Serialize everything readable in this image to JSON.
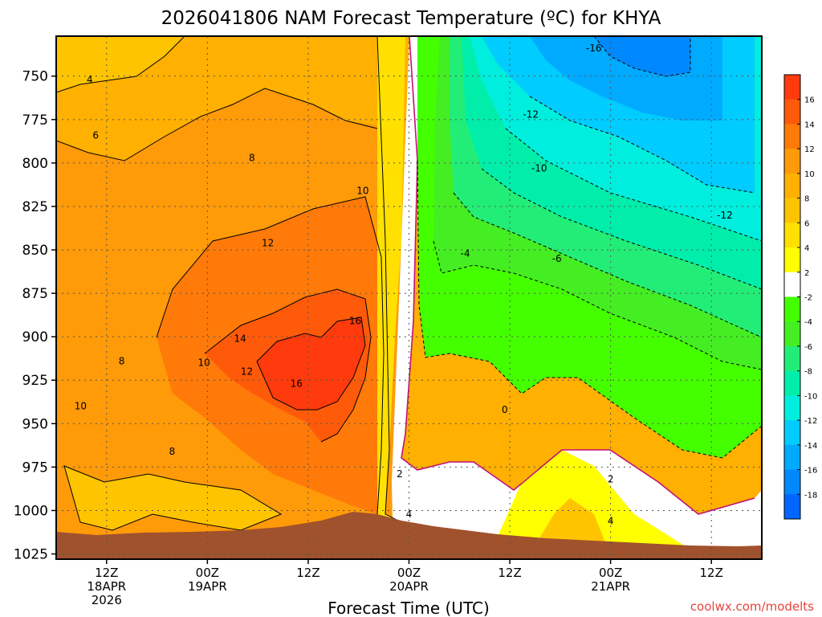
{
  "chart_data": {
    "type": "heatmap",
    "title": "2026041806 NAM Forecast Temperature (ºC) for KHYA",
    "xlabel": "Forecast Time (UTC)",
    "ylabel": "",
    "credit": "coolwx.com/modelts",
    "y_axis": {
      "unit": "hPa",
      "ticks": [
        "750",
        "775",
        "800",
        "825",
        "850",
        "875",
        "900",
        "925",
        "950",
        "975",
        "1000",
        "1025"
      ],
      "range": [
        727,
        1028
      ]
    },
    "x_axis": {
      "unit": "forecast hour",
      "range": [
        0,
        84
      ],
      "ticks": [
        {
          "hour": 6,
          "label1": "12Z",
          "label2": "18APR",
          "label3": "2026"
        },
        {
          "hour": 18,
          "label1": "00Z",
          "label2": "19APR",
          "label3": ""
        },
        {
          "hour": 30,
          "label1": "12Z",
          "label2": "",
          "label3": ""
        },
        {
          "hour": 42,
          "label1": "00Z",
          "label2": "20APR",
          "label3": ""
        },
        {
          "hour": 54,
          "label1": "12Z",
          "label2": "",
          "label3": ""
        },
        {
          "hour": 66,
          "label1": "00Z",
          "label2": "21APR",
          "label3": ""
        },
        {
          "hour": 78,
          "label1": "12Z",
          "label2": "",
          "label3": ""
        }
      ]
    },
    "colorbar": {
      "labels": [
        "16",
        "14",
        "12",
        "10",
        "8",
        "6",
        "4",
        "2",
        "-2",
        "-4",
        "-6",
        "-8",
        "-10",
        "-12",
        "-14",
        "-16",
        "-18"
      ],
      "colors": [
        "#ff3a0c",
        "#ff5a0a",
        "#ff7a08",
        "#ff9a08",
        "#ffb000",
        "#ffc400",
        "#ffe000",
        "#ffff00",
        "#ffffff",
        "#44ff00",
        "#44ee22",
        "#22ee77",
        "#00eeaa",
        "#00eedd",
        "#00ccff",
        "#00aaff",
        "#0088ff",
        "#0066ff"
      ]
    },
    "contour_labels": [
      {
        "text": "4",
        "hour": 4.0,
        "hpa": 752
      },
      {
        "text": "6",
        "hour": 4.7,
        "hpa": 784
      },
      {
        "text": "8",
        "hour": 23.3,
        "hpa": 797
      },
      {
        "text": "10",
        "hour": 36.5,
        "hpa": 816
      },
      {
        "text": "12",
        "hour": 25.2,
        "hpa": 846
      },
      {
        "text": "14",
        "hour": 21.9,
        "hpa": 901
      },
      {
        "text": "16",
        "hour": 35.6,
        "hpa": 891
      },
      {
        "text": "16",
        "hour": 28.6,
        "hpa": 927
      },
      {
        "text": "12",
        "hour": 22.7,
        "hpa": 920
      },
      {
        "text": "10",
        "hour": 17.6,
        "hpa": 915
      },
      {
        "text": "8",
        "hour": 7.8,
        "hpa": 914
      },
      {
        "text": "10",
        "hour": 2.9,
        "hpa": 940
      },
      {
        "text": "8",
        "hour": 13.8,
        "hpa": 966
      },
      {
        "text": "2",
        "hour": 40.9,
        "hpa": 979
      },
      {
        "text": "4",
        "hour": 42.0,
        "hpa": 1002
      },
      {
        "text": "0",
        "hour": 53.4,
        "hpa": 942
      },
      {
        "text": "2",
        "hour": 66.0,
        "hpa": 982
      },
      {
        "text": "4",
        "hour": 66.0,
        "hpa": 1006
      },
      {
        "text": "-16",
        "hour": 64.0,
        "hpa": 734
      },
      {
        "text": "-12",
        "hour": 56.5,
        "hpa": 772
      },
      {
        "text": "-10",
        "hour": 57.5,
        "hpa": 803
      },
      {
        "text": "-12",
        "hour": 79.6,
        "hpa": 830
      },
      {
        "text": "-4",
        "hour": 48.7,
        "hpa": 852
      },
      {
        "text": "-6",
        "hour": 59.6,
        "hpa": 855
      }
    ]
  }
}
